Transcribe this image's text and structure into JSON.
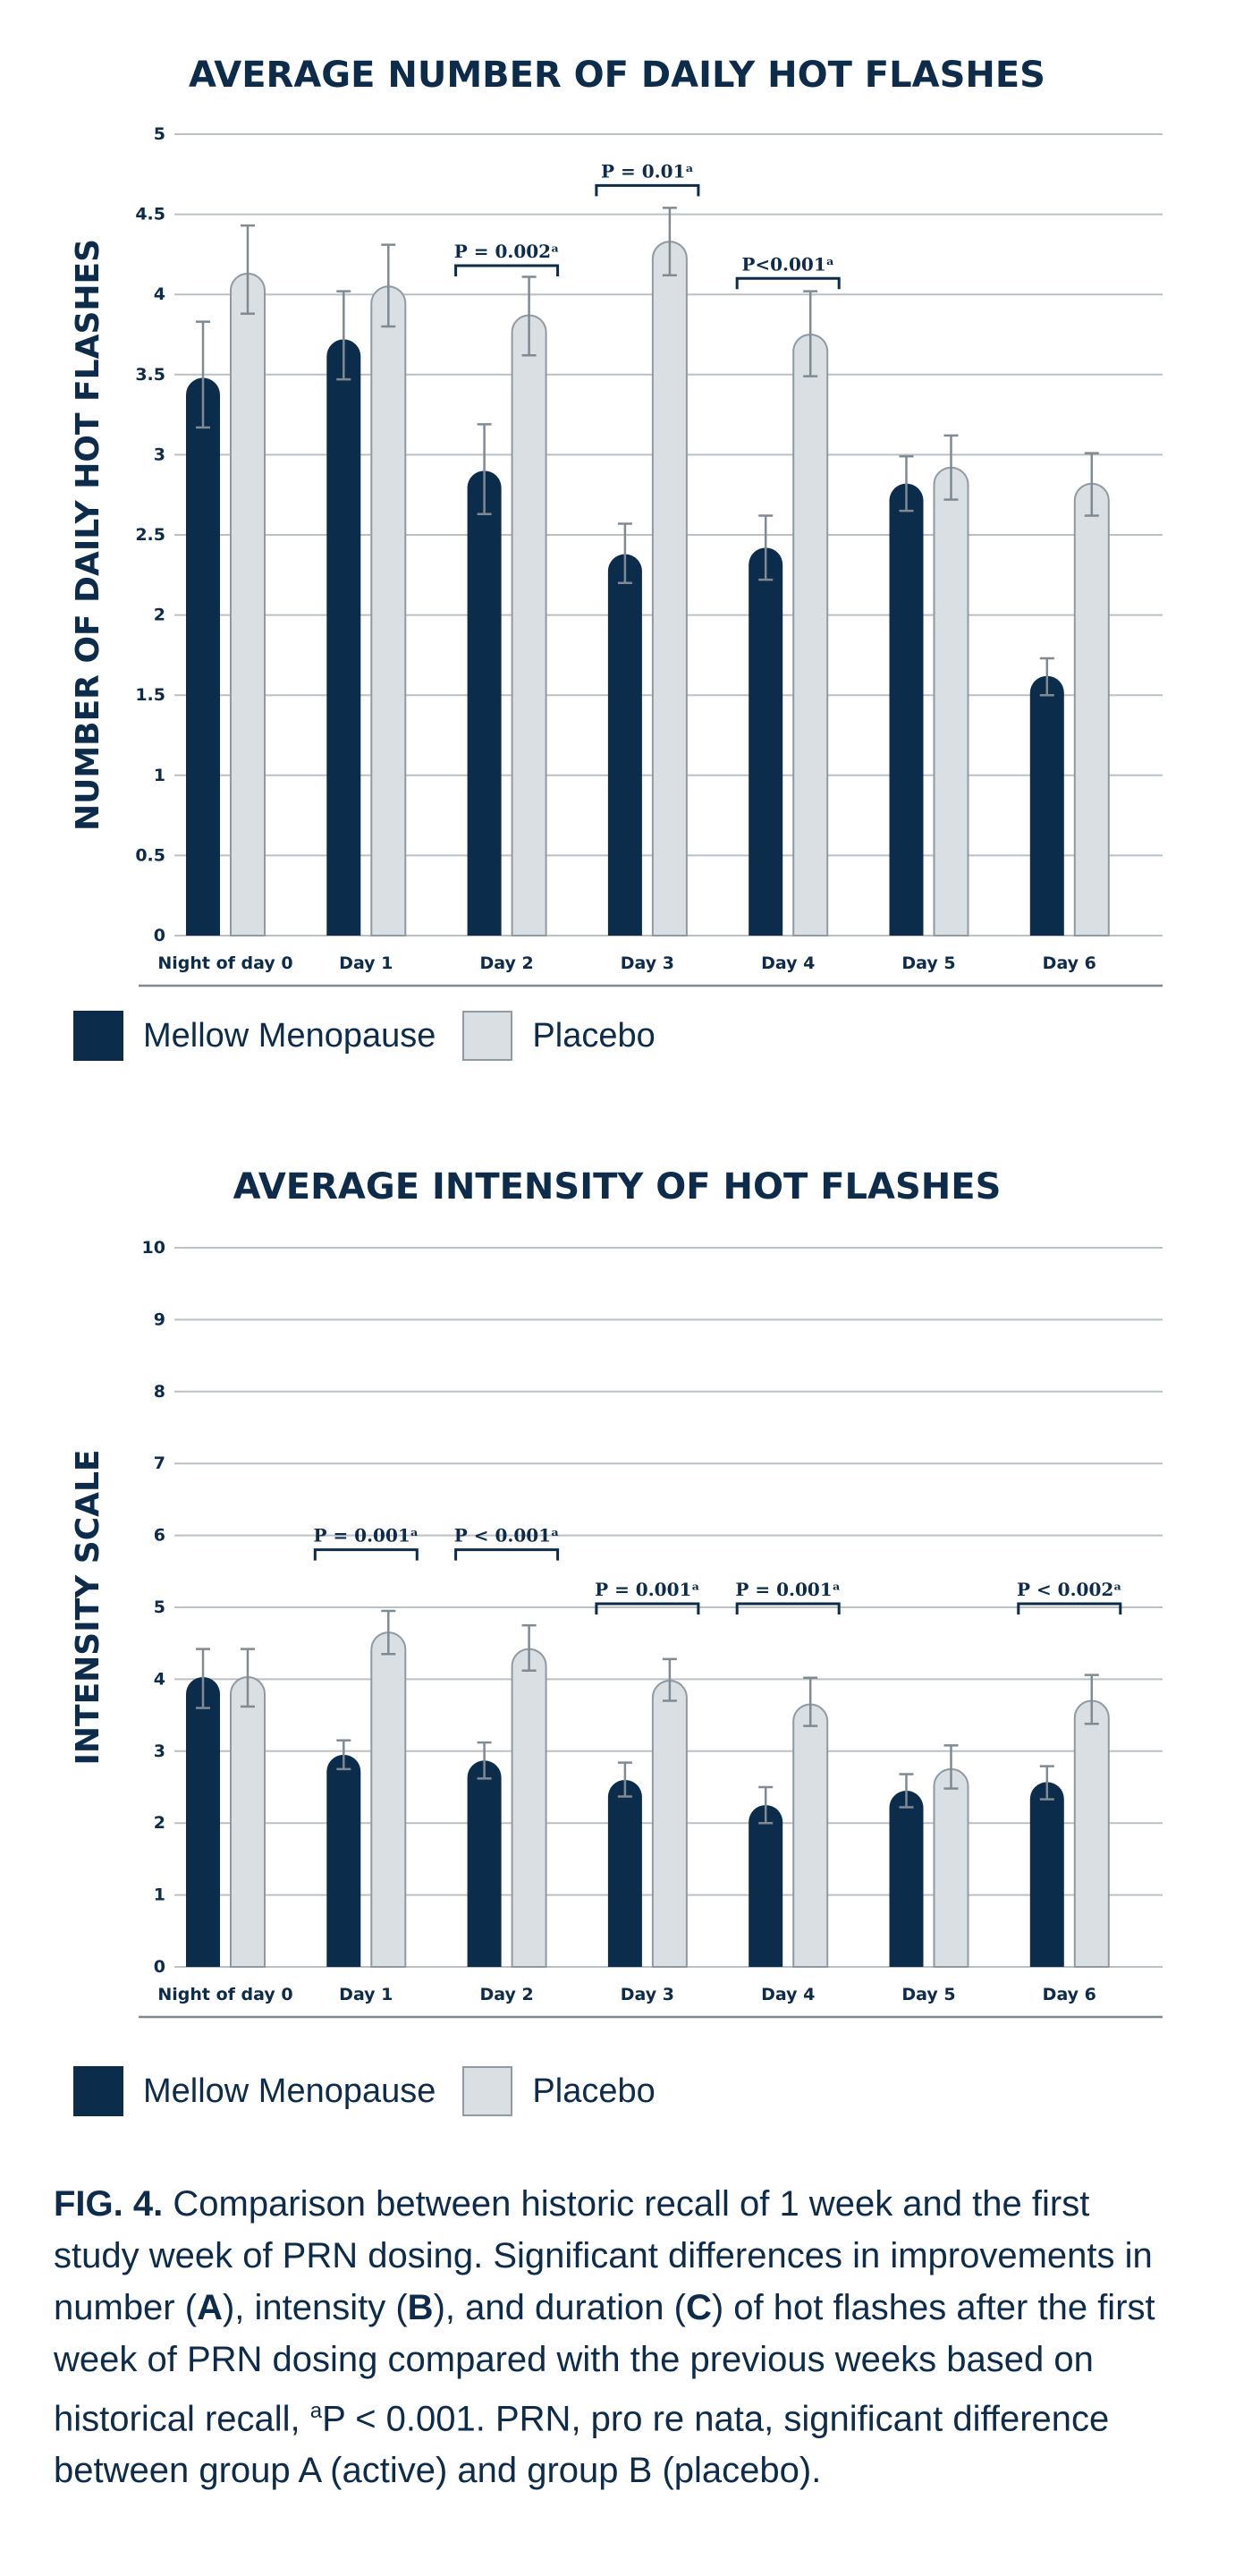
{
  "colors": {
    "active": "#0c2c4b",
    "placebo": "#d9dfe2",
    "placebo_border": "#8f9aa3",
    "grid": "#b9c0c6",
    "error": "#7f8a93",
    "text": "#0d2b4a"
  },
  "legend": {
    "active_label": "Mellow Menopause",
    "placebo_label": "Placebo"
  },
  "caption": {
    "fig": "FIG. 4.",
    "part1": " Comparison between historic recall of 1 week and the first study week of PRN dosing. Significant differences in improvements in number (",
    "a": "A",
    "part2": "), intensity (",
    "b": "B",
    "part3": "), and duration (",
    "c": "C",
    "part4": ") of hot flashes after the first week of PRN dosing compared with the previous weeks based on historical recall, ",
    "sup": "a",
    "part5": "P < 0.001. PRN, pro re nata, significant difference between group A (active) and group B (placebo)."
  },
  "chart_data": [
    {
      "type": "bar",
      "title": "AVERAGE NUMBER OF DAILY HOT FLASHES",
      "ylabel": "NUMBER OF DAILY HOT FLASHES",
      "xlabel": "",
      "ylim": [
        0,
        5
      ],
      "yticks": [
        "0",
        "0.5",
        "1",
        "1.5",
        "2",
        "2.5",
        "3",
        "3.5",
        "4",
        "4.5",
        "5"
      ],
      "categories": [
        "Night of day 0",
        "Day 1",
        "Day 2",
        "Day 3",
        "Day 4",
        "Day 5",
        "Day 6"
      ],
      "series": [
        {
          "name": "Mellow Menopause",
          "values": [
            3.48,
            3.72,
            2.9,
            2.38,
            2.42,
            2.82,
            1.62
          ],
          "err_low": [
            3.17,
            3.47,
            2.63,
            2.2,
            2.22,
            2.65,
            1.5
          ],
          "err_high": [
            3.83,
            4.02,
            3.19,
            2.57,
            2.62,
            2.99,
            1.73
          ]
        },
        {
          "name": "Placebo",
          "values": [
            4.13,
            4.05,
            3.87,
            4.33,
            3.75,
            2.92,
            2.82
          ],
          "err_low": [
            3.88,
            3.8,
            3.62,
            4.12,
            3.49,
            2.72,
            2.62
          ],
          "err_high": [
            4.43,
            4.31,
            4.11,
            4.54,
            4.02,
            3.12,
            3.01
          ]
        }
      ],
      "annotations": [
        {
          "text": "P = 0.002ᵃ",
          "category": 2,
          "y": 4.18
        },
        {
          "text": "P = 0.01ᵃ",
          "category": 3,
          "y": 4.68
        },
        {
          "text": "P<0.001ᵃ",
          "category": 4,
          "y": 4.1
        }
      ]
    },
    {
      "type": "bar",
      "title": "AVERAGE INTENSITY OF HOT FLASHES",
      "ylabel": "INTENSITY SCALE",
      "xlabel": "",
      "ylim": [
        0,
        10
      ],
      "yticks": [
        "0",
        "1",
        "2",
        "3",
        "4",
        "5",
        "6",
        "7",
        "8",
        "9",
        "10"
      ],
      "categories": [
        "Night of day 0",
        "Day 1",
        "Day 2",
        "Day 3",
        "Day 4",
        "Day 5",
        "Day 6"
      ],
      "series": [
        {
          "name": "Mellow Menopause",
          "values": [
            4.03,
            2.95,
            2.87,
            2.6,
            2.25,
            2.45,
            2.57
          ],
          "err_low": [
            3.6,
            2.75,
            2.62,
            2.37,
            2.0,
            2.22,
            2.33
          ],
          "err_high": [
            4.42,
            3.15,
            3.12,
            2.84,
            2.5,
            2.68,
            2.79
          ]
        },
        {
          "name": "Placebo",
          "values": [
            4.03,
            4.65,
            4.42,
            3.98,
            3.65,
            2.75,
            3.7
          ],
          "err_low": [
            3.62,
            4.35,
            4.12,
            3.7,
            3.35,
            2.48,
            3.38
          ],
          "err_high": [
            4.42,
            4.95,
            4.75,
            4.28,
            4.02,
            3.08,
            4.06
          ]
        }
      ],
      "annotations": [
        {
          "text": "P = 0.001ᵃ",
          "category": 1,
          "y": 5.8
        },
        {
          "text": "P < 0.001ᵃ",
          "category": 2,
          "y": 5.8
        },
        {
          "text": "P = 0.001ᵃ",
          "category": 3,
          "y": 5.05
        },
        {
          "text": "P = 0.001ᵃ",
          "category": 4,
          "y": 5.05
        },
        {
          "text": "P < 0.002ᵃ",
          "category": 6,
          "y": 5.05
        }
      ]
    }
  ]
}
